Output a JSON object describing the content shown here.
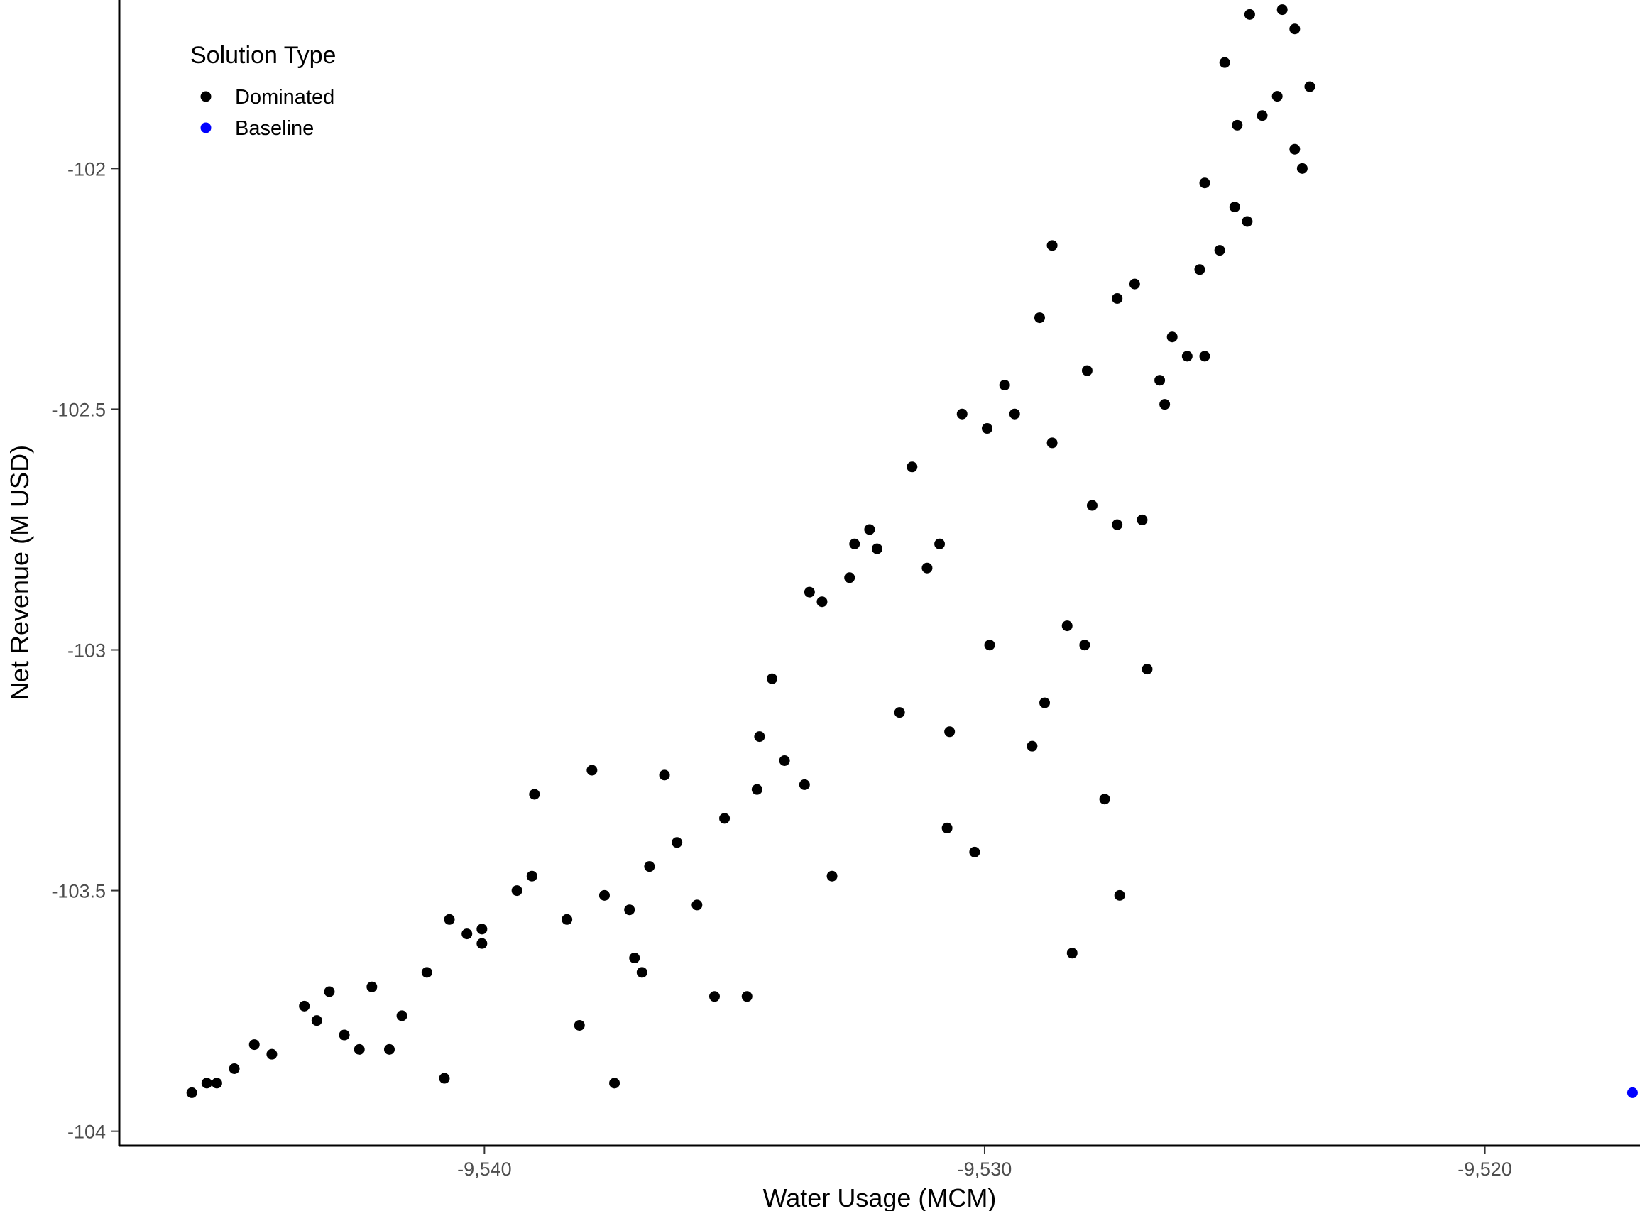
{
  "chart_data": {
    "type": "scatter",
    "title": "",
    "xlabel": "Water Usage (MCM)",
    "ylabel": "Net Revenue (M USD)",
    "xlim": [
      -9547.3,
      -9516.9
    ],
    "ylim": [
      -104.03,
      -101.65
    ],
    "x_ticks": [
      -9540,
      -9530,
      -9520
    ],
    "x_tick_labels": [
      "-9,540",
      "-9,530",
      "-9,520"
    ],
    "y_ticks": [
      -104,
      -103.5,
      -103,
      -102.5,
      -102
    ],
    "y_tick_labels": [
      "-104",
      "-103.5",
      "-103",
      "-102.5",
      "-102"
    ],
    "grid": false,
    "legend": {
      "title": "Solution Type",
      "position": "top-left",
      "entries": [
        {
          "label": "Dominated",
          "color": "#000000"
        },
        {
          "label": "Baseline",
          "color": "#0000ff"
        }
      ]
    },
    "series": [
      {
        "name": "Dominated",
        "color": "#000000",
        "points": [
          [
            -9545.85,
            -103.92
          ],
          [
            -9545.55,
            -103.9
          ],
          [
            -9545.35,
            -103.9
          ],
          [
            -9545.0,
            -103.87
          ],
          [
            -9544.6,
            -103.82
          ],
          [
            -9544.25,
            -103.84
          ],
          [
            -9543.6,
            -103.74
          ],
          [
            -9543.35,
            -103.77
          ],
          [
            -9543.1,
            -103.71
          ],
          [
            -9542.8,
            -103.8
          ],
          [
            -9542.5,
            -103.83
          ],
          [
            -9542.25,
            -103.7
          ],
          [
            -9541.9,
            -103.83
          ],
          [
            -9541.65,
            -103.76
          ],
          [
            -9541.15,
            -103.67
          ],
          [
            -9540.8,
            -103.89
          ],
          [
            -9540.7,
            -103.56
          ],
          [
            -9540.35,
            -103.59
          ],
          [
            -9540.05,
            -103.58
          ],
          [
            -9540.05,
            -103.61
          ],
          [
            -9539.35,
            -103.5
          ],
          [
            -9539.05,
            -103.47
          ],
          [
            -9539.0,
            -103.3
          ],
          [
            -9538.35,
            -103.56
          ],
          [
            -9538.1,
            -103.78
          ],
          [
            -9537.85,
            -103.25
          ],
          [
            -9537.6,
            -103.51
          ],
          [
            -9537.4,
            -103.9
          ],
          [
            -9537.1,
            -103.54
          ],
          [
            -9537.0,
            -103.64
          ],
          [
            -9536.85,
            -103.67
          ],
          [
            -9536.7,
            -103.45
          ],
          [
            -9536.4,
            -103.26
          ],
          [
            -9536.15,
            -103.4
          ],
          [
            -9535.75,
            -103.53
          ],
          [
            -9535.4,
            -103.72
          ],
          [
            -9535.2,
            -103.35
          ],
          [
            -9534.75,
            -103.72
          ],
          [
            -9534.55,
            -103.29
          ],
          [
            -9534.5,
            -103.18
          ],
          [
            -9534.25,
            -103.06
          ],
          [
            -9534.0,
            -103.23
          ],
          [
            -9533.6,
            -103.28
          ],
          [
            -9533.5,
            -102.88
          ],
          [
            -9533.25,
            -102.9
          ],
          [
            -9533.05,
            -103.47
          ],
          [
            -9532.7,
            -102.85
          ],
          [
            -9532.6,
            -102.78
          ],
          [
            -9532.3,
            -102.75
          ],
          [
            -9532.15,
            -102.79
          ],
          [
            -9531.7,
            -103.13
          ],
          [
            -9531.45,
            -102.62
          ],
          [
            -9531.15,
            -102.83
          ],
          [
            -9530.9,
            -102.78
          ],
          [
            -9530.75,
            -103.37
          ],
          [
            -9530.7,
            -103.17
          ],
          [
            -9530.45,
            -102.51
          ],
          [
            -9530.2,
            -103.42
          ],
          [
            -9529.95,
            -102.54
          ],
          [
            -9529.9,
            -102.99
          ],
          [
            -9529.6,
            -102.45
          ],
          [
            -9529.4,
            -102.51
          ],
          [
            -9529.05,
            -103.2
          ],
          [
            -9528.9,
            -102.31
          ],
          [
            -9528.8,
            -103.11
          ],
          [
            -9528.65,
            -102.16
          ],
          [
            -9528.65,
            -102.57
          ],
          [
            -9528.35,
            -102.95
          ],
          [
            -9528.25,
            -103.63
          ],
          [
            -9528.0,
            -102.99
          ],
          [
            -9527.95,
            -102.42
          ],
          [
            -9527.85,
            -102.7
          ],
          [
            -9527.6,
            -103.31
          ],
          [
            -9527.35,
            -102.27
          ],
          [
            -9527.35,
            -102.74
          ],
          [
            -9527.3,
            -103.51
          ],
          [
            -9527.0,
            -102.24
          ],
          [
            -9526.85,
            -102.73
          ],
          [
            -9526.75,
            -103.04
          ],
          [
            -9526.5,
            -102.44
          ],
          [
            -9526.4,
            -102.49
          ],
          [
            -9526.25,
            -102.35
          ],
          [
            -9525.95,
            -102.39
          ],
          [
            -9525.7,
            -102.21
          ],
          [
            -9525.6,
            -102.39
          ],
          [
            -9525.6,
            -102.03
          ],
          [
            -9525.3,
            -102.17
          ],
          [
            -9525.2,
            -101.78
          ],
          [
            -9525.0,
            -102.08
          ],
          [
            -9524.95,
            -101.91
          ],
          [
            -9524.75,
            -102.11
          ],
          [
            -9524.7,
            -101.68
          ],
          [
            -9524.45,
            -101.89
          ],
          [
            -9524.2,
            -101.63
          ],
          [
            -9524.15,
            -101.85
          ],
          [
            -9524.05,
            -101.67
          ],
          [
            -9523.8,
            -101.96
          ],
          [
            -9523.8,
            -101.71
          ],
          [
            -9523.65,
            -102.0
          ],
          [
            -9523.5,
            -101.83
          ]
        ]
      },
      {
        "name": "Baseline",
        "color": "#0000ff",
        "points": [
          [
            -9517.05,
            -103.92
          ]
        ]
      }
    ]
  }
}
